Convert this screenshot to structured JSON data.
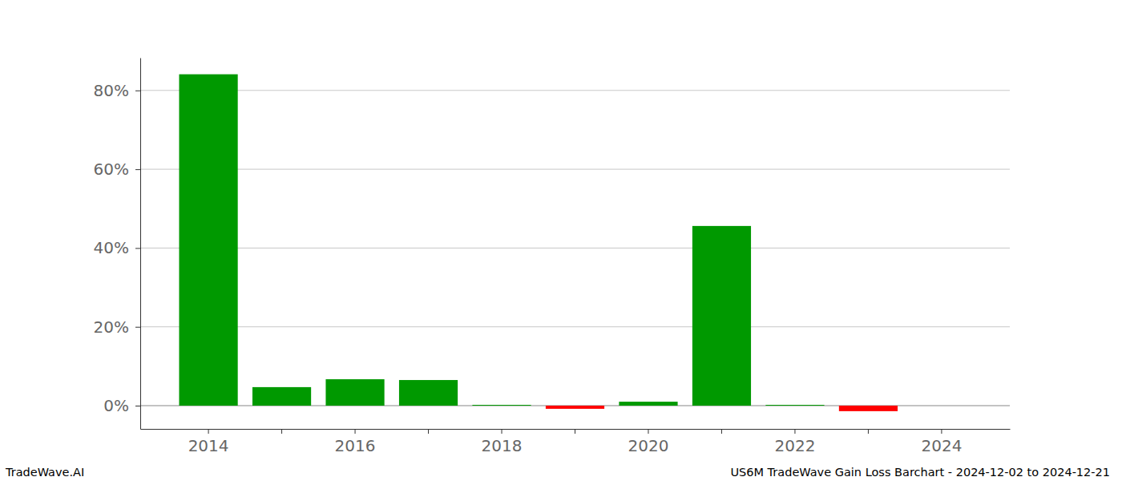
{
  "chart_data": {
    "type": "bar",
    "title": "US6M TradeWave Gain Loss Barchart - 2024-12-02 to 2024-12-21",
    "annotations": [
      "TradeWave.AI"
    ],
    "categories": [
      "2014",
      null,
      "2016",
      null,
      "2018",
      null,
      "2020",
      null,
      "2022",
      null,
      "2024"
    ],
    "values": [
      84.1,
      4.7,
      6.7,
      6.5,
      0.2,
      -0.8,
      1.0,
      45.6,
      0.2,
      -1.4,
      0
    ],
    "colors": [
      "#009900",
      "#009900",
      "#009900",
      "#009900",
      "#009900",
      "#ff0000",
      "#009900",
      "#009900",
      "#009900",
      "#ff0000",
      "#009900"
    ],
    "ylim": [
      -5.9,
      88.3
    ],
    "yticks": [
      {
        "value": 0,
        "label": "0%"
      },
      {
        "value": 20,
        "label": "20%"
      },
      {
        "value": 40,
        "label": "40%"
      },
      {
        "value": 60,
        "label": "60%"
      },
      {
        "value": 80,
        "label": "80%"
      }
    ],
    "grid": true
  }
}
